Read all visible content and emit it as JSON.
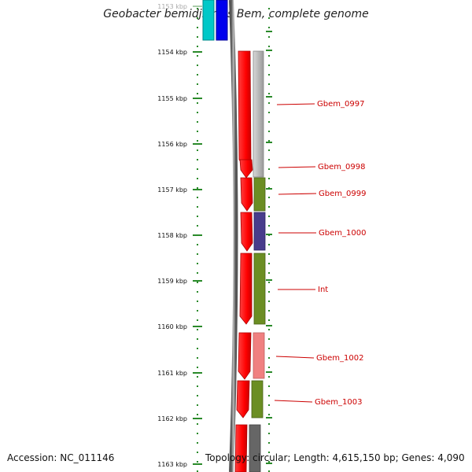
{
  "title": "Geobacter bemidjiensis Bem, complete genome",
  "footer": {
    "accession": "Accession: NC_011146",
    "topology": "Topology: circular; Length: 4,615,150 bp; Genes: 4,090"
  },
  "scale_labels": [
    "1153 kbp",
    "1154 kbp",
    "1155 kbp",
    "1156 kbp",
    "1157 kbp",
    "1158 kbp",
    "1159 kbp",
    "1160 kbp",
    "1161 kbp",
    "1162 kbp",
    "1163 kbp"
  ],
  "gene_labels": [
    "Gbem_0997",
    "Gbem_0998",
    "Gbem_0999",
    "Gbem_1000",
    "Int",
    "Gbem_1002",
    "Gbem_1003"
  ],
  "colors": {
    "forward_strand": "#ff0000",
    "scale_ticks": "#2a8a2a",
    "label_text": "#cc0000",
    "backbone": "#777777",
    "cyan_gene": "#00c8c8",
    "blue_gene": "#0000ee",
    "gray_gene": "#bbbbbb",
    "olive_gene": "#6b8e23",
    "navy_gene": "#483d8b",
    "salmon_gene": "#f08080",
    "darkgray_gene": "#666666"
  }
}
